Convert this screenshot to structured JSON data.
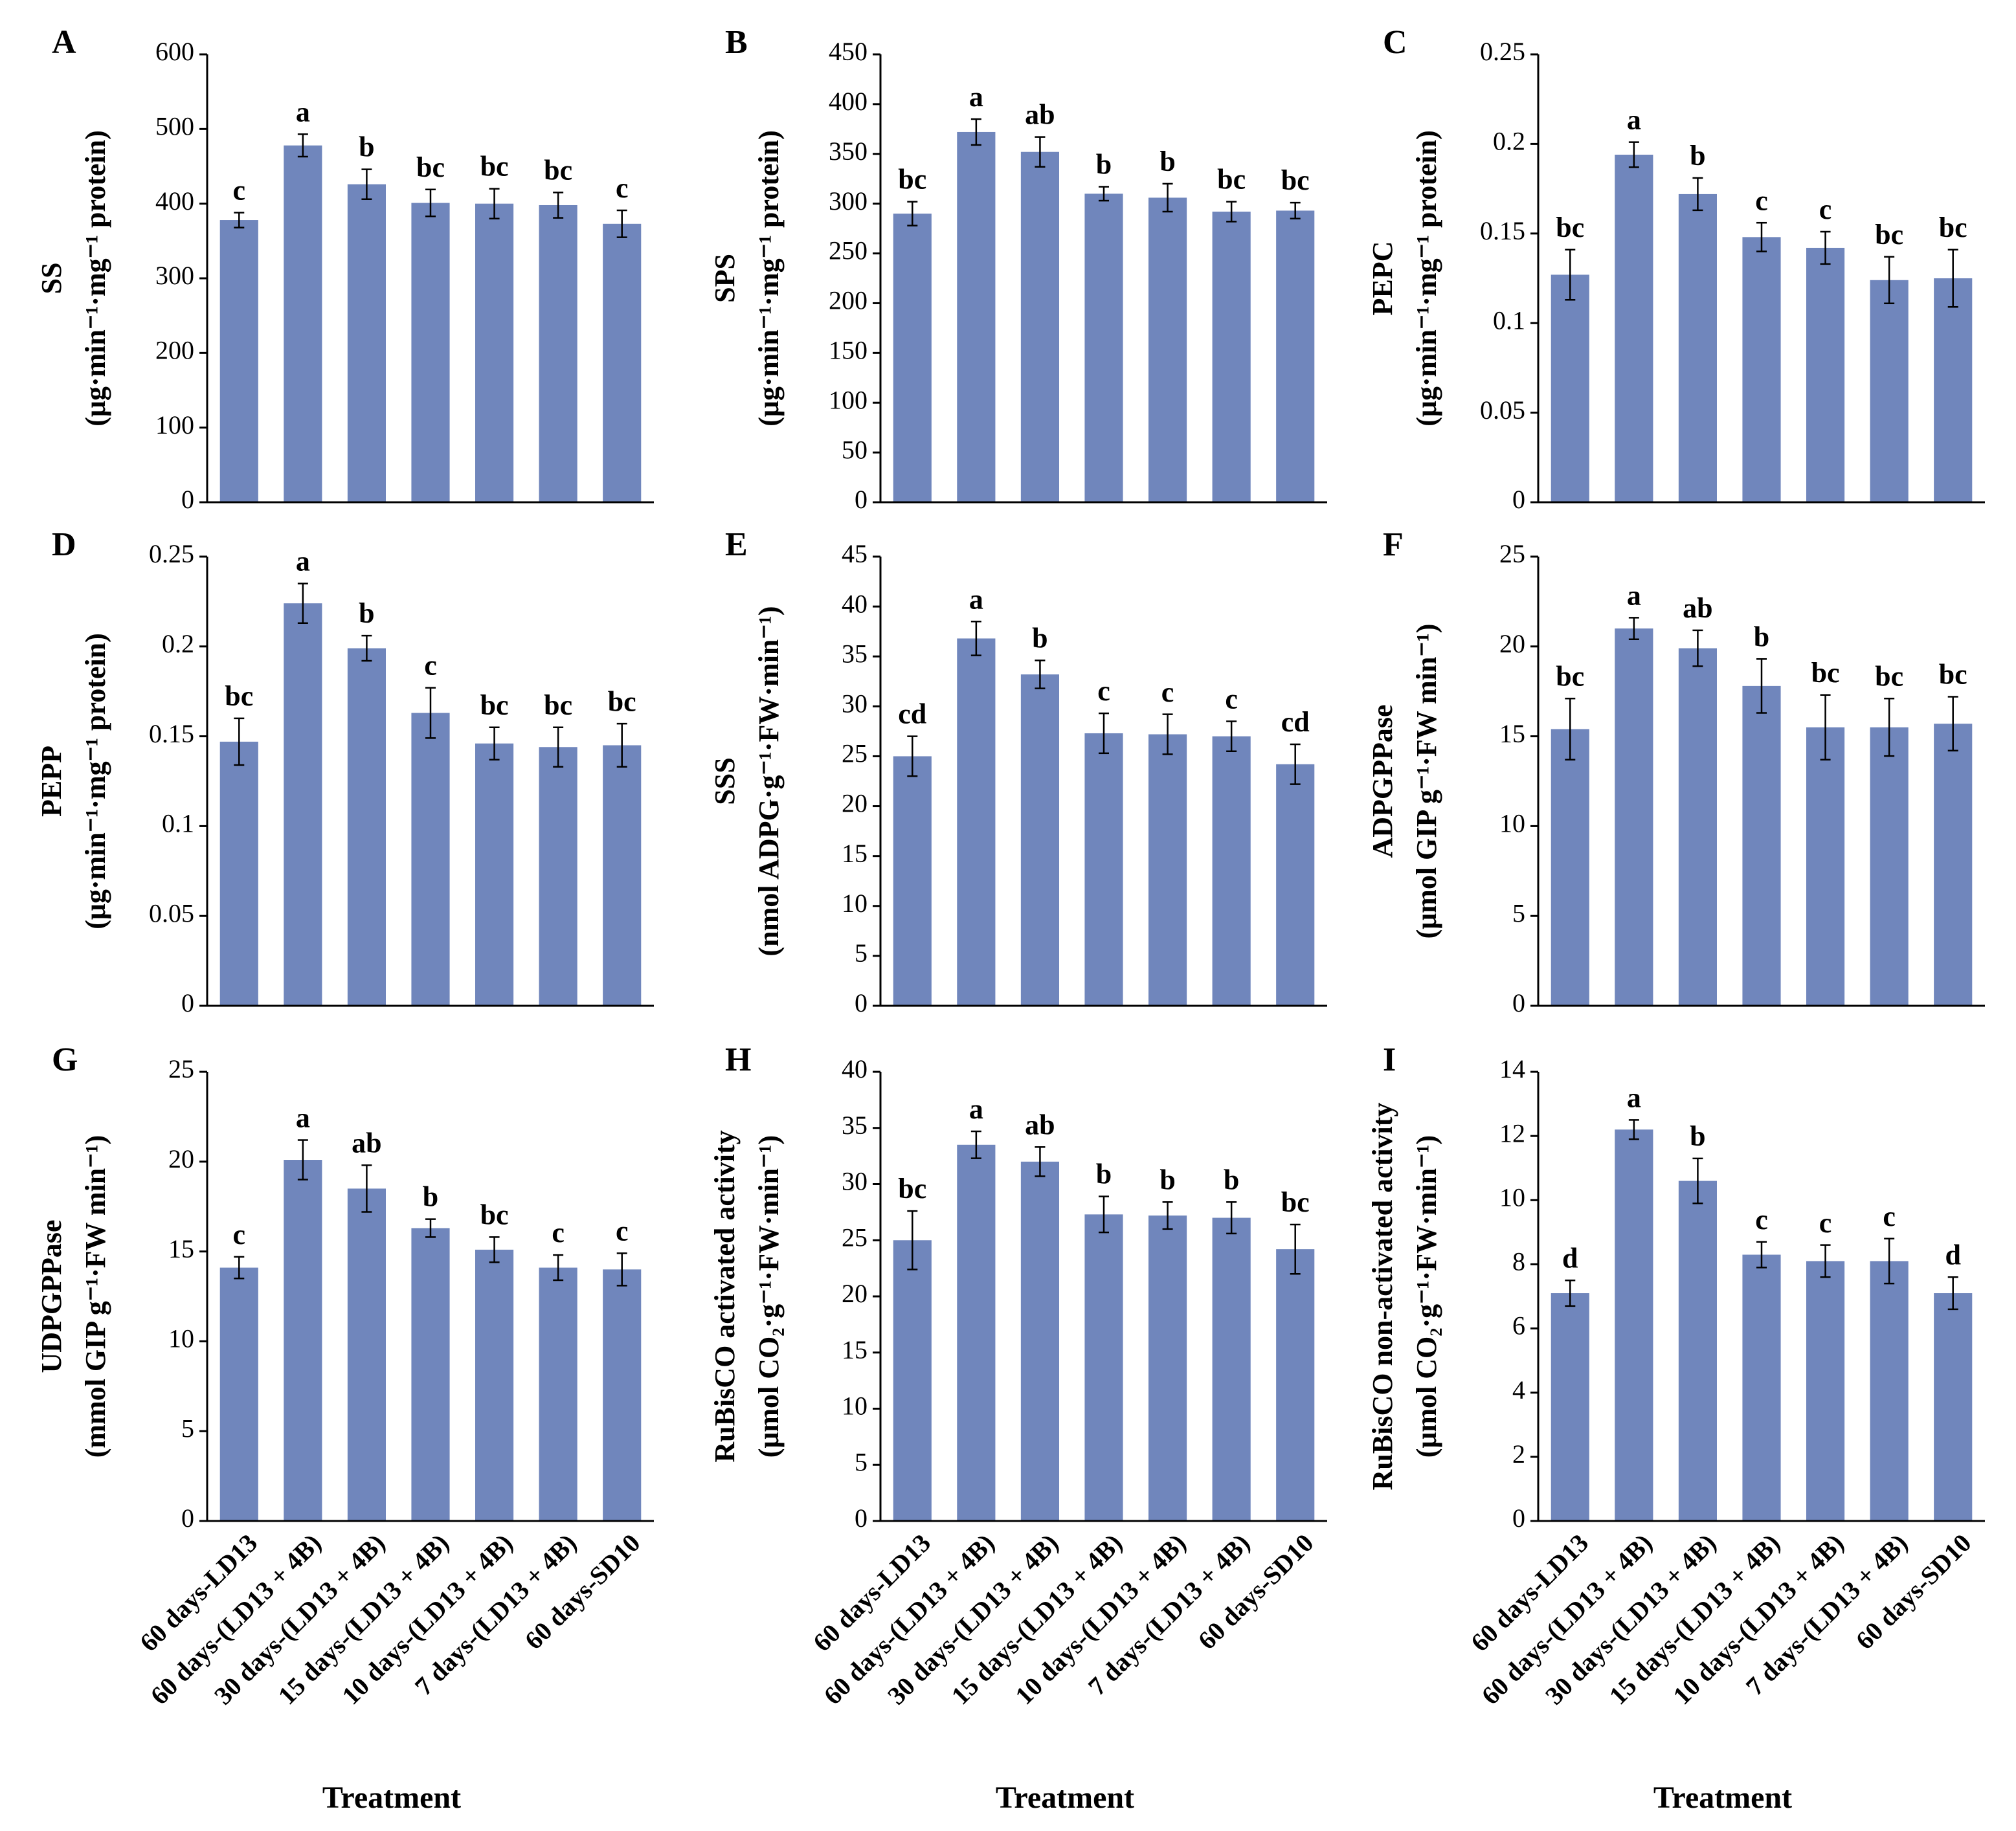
{
  "chart_data": [
    {
      "type": "bar",
      "panel": "A",
      "ylabel": [
        "SS",
        "(μg·min⁻¹·mg⁻¹ protein)"
      ],
      "color": "#7086bc",
      "categories": [
        null,
        null,
        null,
        null,
        null,
        null,
        null
      ],
      "values": [
        378,
        478,
        426,
        401,
        400,
        398,
        373
      ],
      "errors": [
        10,
        15,
        20,
        18,
        20,
        17,
        18
      ],
      "letters": [
        "c",
        "a",
        "b",
        "bc",
        "bc",
        "bc",
        "c"
      ],
      "ylim": [
        0,
        600
      ],
      "yticks": [
        0,
        100,
        200,
        300,
        400,
        500,
        600
      ]
    },
    {
      "type": "bar",
      "panel": "B",
      "ylabel": [
        "SPS",
        "(μg·min⁻¹·mg⁻¹ protein)"
      ],
      "color": "#7086bc",
      "categories": [
        null,
        null,
        null,
        null,
        null,
        null,
        null
      ],
      "values": [
        290,
        372,
        352,
        310,
        306,
        292,
        293
      ],
      "errors": [
        12,
        13,
        15,
        7,
        14,
        10,
        8
      ],
      "letters": [
        "bc",
        "a",
        "ab",
        "b",
        "b",
        "bc",
        "bc"
      ],
      "ylim": [
        0,
        450
      ],
      "yticks": [
        0,
        50,
        100,
        150,
        200,
        250,
        300,
        350,
        400,
        450
      ]
    },
    {
      "type": "bar",
      "panel": "C",
      "ylabel": [
        "PEPC",
        "(μg·min⁻¹·mg⁻¹ protein)"
      ],
      "color": "#7086bc",
      "categories": [
        null,
        null,
        null,
        null,
        null,
        null,
        null
      ],
      "values": [
        0.127,
        0.194,
        0.172,
        0.148,
        0.142,
        0.124,
        0.125
      ],
      "errors": [
        0.014,
        0.007,
        0.009,
        0.008,
        0.009,
        0.013,
        0.016
      ],
      "letters": [
        "bc",
        "a",
        "b",
        "c",
        "c",
        "bc",
        "bc"
      ],
      "ylim": [
        0,
        0.25
      ],
      "yticks": [
        0,
        0.05,
        0.1,
        0.15,
        0.2,
        0.25
      ]
    },
    {
      "type": "bar",
      "panel": "D",
      "ylabel": [
        "PEPP",
        "(μg·min⁻¹·mg⁻¹ protein)"
      ],
      "color": "#7086bc",
      "categories": [
        null,
        null,
        null,
        null,
        null,
        null,
        null
      ],
      "values": [
        0.147,
        0.224,
        0.199,
        0.163,
        0.146,
        0.144,
        0.145
      ],
      "errors": [
        0.013,
        0.011,
        0.007,
        0.014,
        0.009,
        0.011,
        0.012
      ],
      "letters": [
        "bc",
        "a",
        "b",
        "c",
        "bc",
        "bc",
        "bc"
      ],
      "ylim": [
        0,
        0.25
      ],
      "yticks": [
        0,
        0.05,
        0.1,
        0.15,
        0.2,
        0.25
      ]
    },
    {
      "type": "bar",
      "panel": "E",
      "ylabel": [
        "SSS",
        "(nmol ADPG·g⁻¹·FW·min⁻¹)"
      ],
      "color": "#7086bc",
      "categories": [
        null,
        null,
        null,
        null,
        null,
        null,
        null
      ],
      "values": [
        25,
        36.8,
        33.2,
        27.3,
        27.2,
        27,
        24.2
      ],
      "errors": [
        2,
        1.7,
        1.4,
        2,
        2,
        1.5,
        2
      ],
      "letters": [
        "cd",
        "a",
        "b",
        "c",
        "c",
        "c",
        "cd"
      ],
      "ylim": [
        0,
        45
      ],
      "yticks": [
        0,
        5,
        10,
        15,
        20,
        25,
        30,
        35,
        40,
        45
      ]
    },
    {
      "type": "bar",
      "panel": "F",
      "ylabel": [
        "ADPGPPase",
        "(μmol GIP g⁻¹·FW min⁻¹)"
      ],
      "color": "#7086bc",
      "categories": [
        null,
        null,
        null,
        null,
        null,
        null,
        null
      ],
      "values": [
        15.4,
        21,
        19.9,
        17.8,
        15.5,
        15.5,
        15.7
      ],
      "errors": [
        1.7,
        0.6,
        1,
        1.5,
        1.8,
        1.6,
        1.5
      ],
      "letters": [
        "bc",
        "a",
        "ab",
        "b",
        "bc",
        "bc",
        "bc"
      ],
      "ylim": [
        0,
        25
      ],
      "yticks": [
        0,
        5,
        10,
        15,
        20,
        25
      ]
    },
    {
      "type": "bar",
      "panel": "G",
      "ylabel": [
        "UDPGPPase",
        "(mmol GIP g⁻¹·FW min⁻¹)"
      ],
      "color": "#7086bc",
      "categories": [
        "60 days-LD13",
        "60 days-(LD13 + 4B)",
        "30 days-(LD13 + 4B)",
        "15 days-(LD13 + 4B)",
        "10 days-(LD13 + 4B)",
        "7 days-(LD13 + 4B)",
        "60 days-SD10"
      ],
      "xlabel": "Treatment",
      "values": [
        14.1,
        20.1,
        18.5,
        16.3,
        15.1,
        14.1,
        14.0
      ],
      "errors": [
        0.6,
        1.1,
        1.3,
        0.5,
        0.7,
        0.7,
        0.9
      ],
      "letters": [
        "c",
        "a",
        "ab",
        "b",
        "bc",
        "c",
        "c"
      ],
      "ylim": [
        0,
        25
      ],
      "yticks": [
        0,
        5,
        10,
        15,
        20,
        25
      ]
    },
    {
      "type": "bar",
      "panel": "H",
      "ylabel": [
        "RuBisCO activated activity",
        "(μmol CO₂·g⁻¹·FW·min⁻¹)"
      ],
      "color": "#7086bc",
      "categories": [
        "60 days-LD13",
        "60 days-(LD13 + 4B)",
        "30 days-(LD13 + 4B)",
        "15 days-(LD13 + 4B)",
        "10 days-(LD13 + 4B)",
        "7 days-(LD13 + 4B)",
        "60 days-SD10"
      ],
      "xlabel": "Treatment",
      "values": [
        25,
        33.5,
        32,
        27.3,
        27.2,
        27,
        24.2
      ],
      "errors": [
        2.6,
        1.2,
        1.3,
        1.6,
        1.2,
        1.4,
        2.2
      ],
      "letters": [
        "bc",
        "a",
        "ab",
        "b",
        "b",
        "b",
        "bc"
      ],
      "ylim": [
        0,
        40
      ],
      "yticks": [
        0,
        5,
        10,
        15,
        20,
        25,
        30,
        35,
        40
      ]
    },
    {
      "type": "bar",
      "panel": "I",
      "ylabel": [
        "RuBisCO non-activated activity",
        "(μmol CO₂·g⁻¹·FW·min⁻¹)"
      ],
      "color": "#7086bc",
      "categories": [
        "60 days-LD13",
        "60 days-(LD13 + 4B)",
        "30 days-(LD13 + 4B)",
        "15 days-(LD13 + 4B)",
        "10 days-(LD13 + 4B)",
        "7 days-(LD13 + 4B)",
        "60 days-SD10"
      ],
      "xlabel": "Treatment",
      "values": [
        7.1,
        12.2,
        10.6,
        8.3,
        8.1,
        8.1,
        7.1
      ],
      "errors": [
        0.4,
        0.3,
        0.7,
        0.4,
        0.5,
        0.7,
        0.5
      ],
      "letters": [
        "d",
        "a",
        "b",
        "c",
        "c",
        "c",
        "d"
      ],
      "ylim": [
        0,
        14
      ],
      "yticks": [
        0,
        2,
        4,
        6,
        8,
        10,
        12,
        14
      ]
    }
  ]
}
